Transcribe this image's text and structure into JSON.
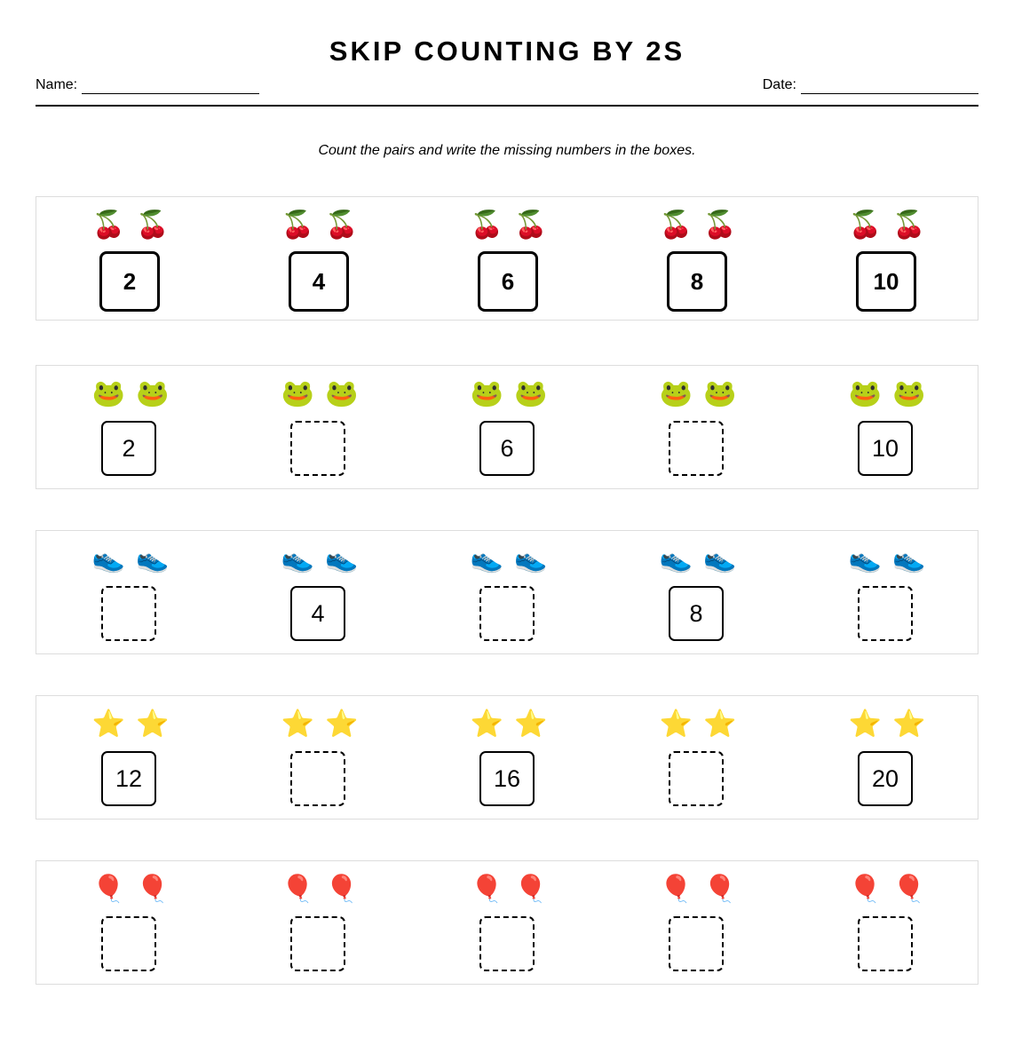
{
  "title": "SKIP COUNTING BY 2S",
  "header": {
    "name_label": "Name:",
    "date_label": "Date:"
  },
  "instructions": "Count the pairs and write the missing numbers in the boxes.",
  "rows": [
    {
      "icon": "cherries-icon",
      "glyph": "🍒",
      "style": "bold",
      "cells": [
        "2",
        "4",
        "6",
        "8",
        "10"
      ]
    },
    {
      "icon": "frog-icon",
      "glyph": "🐸",
      "style": "mixed",
      "cells": [
        "2",
        "",
        "6",
        "",
        "10"
      ]
    },
    {
      "icon": "sneaker-icon",
      "glyph": "👟",
      "style": "mixed",
      "cells": [
        "",
        "4",
        "",
        "8",
        ""
      ]
    },
    {
      "icon": "star-icon",
      "glyph": "⭐",
      "style": "mixed",
      "cells": [
        "12",
        "",
        "16",
        "",
        "20"
      ]
    },
    {
      "icon": "balloon-icon",
      "glyph": "🎈",
      "style": "mixed",
      "cells": [
        "",
        "",
        "",
        "",
        ""
      ]
    }
  ]
}
